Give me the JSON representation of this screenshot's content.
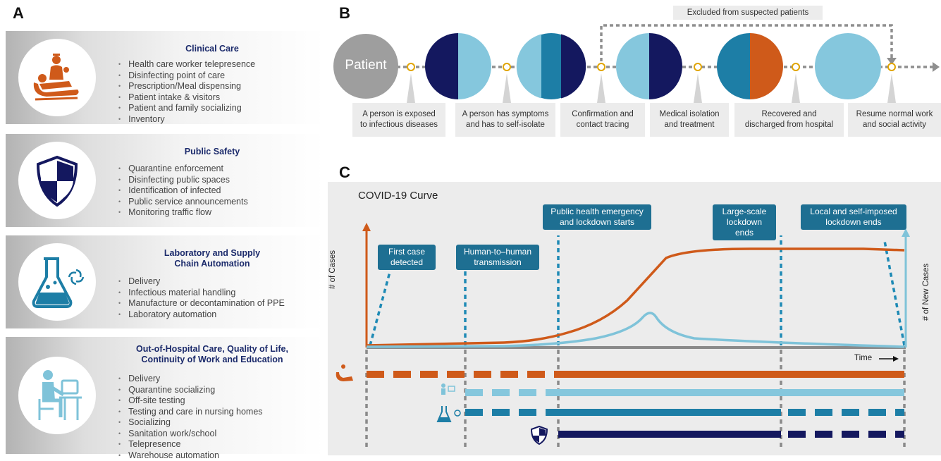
{
  "panels": {
    "a": "A",
    "b": "B",
    "c": "C"
  },
  "panel_a": {
    "cards": [
      {
        "title": "Clinical Care",
        "icon": "clinical-care-icon",
        "items": [
          "Health care worker telepresence",
          "Disinfecting point of care",
          "Prescription/Meal dispensing",
          "Patient intake & visitors",
          "Patient and family socializing",
          "Inventory"
        ]
      },
      {
        "title": "Public Safety",
        "icon": "shield-icon",
        "items": [
          "Quarantine enforcement",
          "Disinfecting public spaces",
          "Identification of infected",
          "Public service announcements",
          "Monitoring traffic flow"
        ]
      },
      {
        "title": "Laboratory and Supply\nChain Automation",
        "icon": "flask-icon",
        "items": [
          "Delivery",
          "Infectious material handling",
          "Manufacture or decontamination of PPE",
          "Laboratory automation"
        ]
      },
      {
        "title": "Out-of-Hospital Care, Quality of Life,\nContinuity of  Work and Education",
        "icon": "person-at-computer-icon",
        "items": [
          "Delivery",
          "Quarantine socializing",
          "Off-site testing",
          "Testing and care in nursing homes",
          "Socializing",
          "Sanitation work/school",
          "Telepresence",
          "Warehouse automation"
        ]
      }
    ]
  },
  "panel_b": {
    "patient_label": "Patient",
    "excluded_label": "Excluded from suspected patients",
    "steps": [
      "A person is exposed\nto infectious diseases",
      "A person has symptoms\nand has to self-isolate",
      "Confirmation and\ncontact tracing",
      "Medical isolation\nand treatment",
      "Recovered and\ndischarged from hospital",
      "Resume normal work\nand social activity"
    ]
  },
  "panel_c": {
    "title": "COVID-19 Curve",
    "y_left_label": "# of Cases",
    "y_right_label": "# of New Cases",
    "x_label": "Time",
    "events": [
      "First case\ndetected",
      "Human-to–human\ntransmission",
      "Public health emergency\nand lockdown starts",
      "Large-scale\nlockdown ends",
      "Local and self-imposed\nlockdown ends"
    ]
  },
  "colors": {
    "orange": "#cf5a1a",
    "light_blue": "#7fc3d9",
    "teal": "#1d7ea6",
    "navy": "#14185f",
    "circle_light": "#85c7dd",
    "callout": "#1e6f92"
  }
}
